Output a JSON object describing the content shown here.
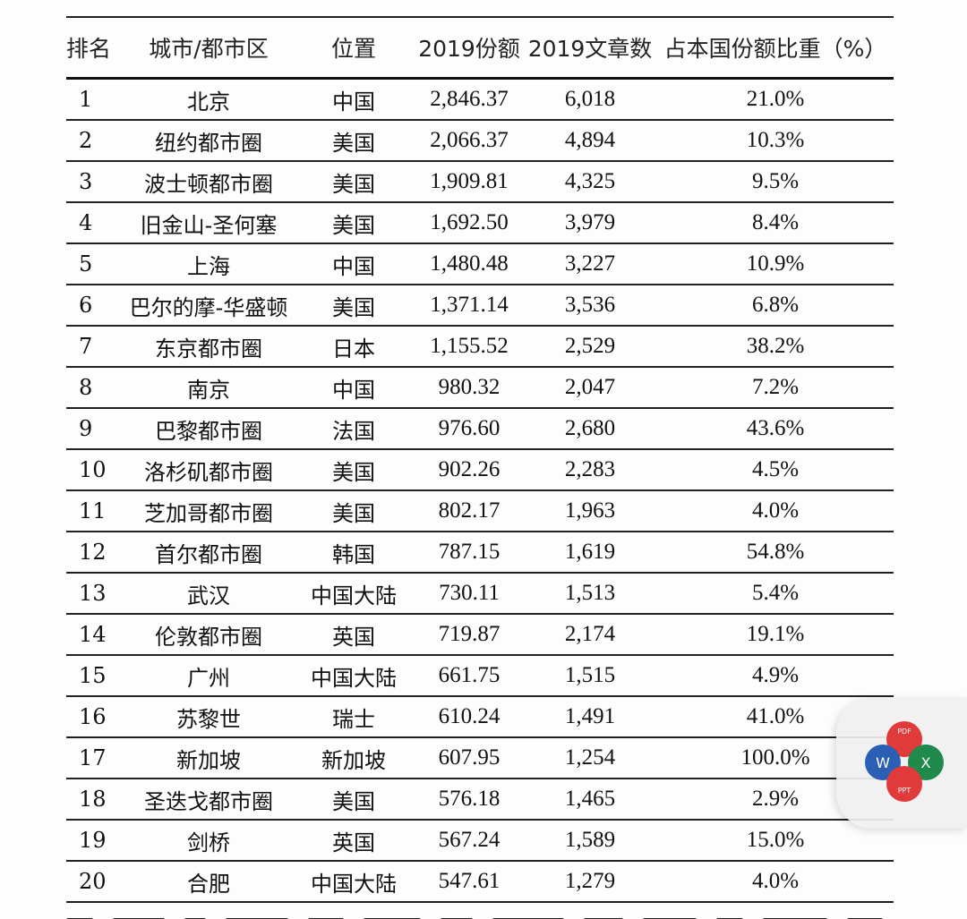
{
  "table": {
    "headers": {
      "rank": "排名",
      "city": "城市/都市区",
      "location": "位置",
      "share_2019": "2019份额",
      "articles_2019": "2019文章数",
      "ratio": "占本国份额比重（%）"
    },
    "rows": [
      {
        "rank": "1",
        "city": "北京",
        "location": "中国",
        "share": "2,846.37",
        "articles": "6,018",
        "ratio": "21.0%"
      },
      {
        "rank": "2",
        "city": "纽约都市圈",
        "location": "美国",
        "share": "2,066.37",
        "articles": "4,894",
        "ratio": "10.3%"
      },
      {
        "rank": "3",
        "city": "波士顿都市圈",
        "location": "美国",
        "share": "1,909.81",
        "articles": "4,325",
        "ratio": "9.5%"
      },
      {
        "rank": "4",
        "city": "旧金山-圣何塞",
        "location": "美国",
        "share": "1,692.50",
        "articles": "3,979",
        "ratio": "8.4%"
      },
      {
        "rank": "5",
        "city": "上海",
        "location": "中国",
        "share": "1,480.48",
        "articles": "3,227",
        "ratio": "10.9%"
      },
      {
        "rank": "6",
        "city": "巴尔的摩-华盛顿",
        "location": "美国",
        "share": "1,371.14",
        "articles": "3,536",
        "ratio": "6.8%"
      },
      {
        "rank": "7",
        "city": "东京都市圈",
        "location": "日本",
        "share": "1,155.52",
        "articles": "2,529",
        "ratio": "38.2%"
      },
      {
        "rank": "8",
        "city": "南京",
        "location": "中国",
        "share": "980.32",
        "articles": "2,047",
        "ratio": "7.2%"
      },
      {
        "rank": "9",
        "city": "巴黎都市圈",
        "location": "法国",
        "share": "976.60",
        "articles": "2,680",
        "ratio": "43.6%"
      },
      {
        "rank": "10",
        "city": "洛杉矶都市圈",
        "location": "美国",
        "share": "902.26",
        "articles": "2,283",
        "ratio": "4.5%"
      },
      {
        "rank": "11",
        "city": "芝加哥都市圈",
        "location": "美国",
        "share": "802.17",
        "articles": "1,963",
        "ratio": "4.0%"
      },
      {
        "rank": "12",
        "city": "首尔都市圈",
        "location": "韩国",
        "share": "787.15",
        "articles": "1,619",
        "ratio": "54.8%"
      },
      {
        "rank": "13",
        "city": "武汉",
        "location": "中国大陆",
        "share": "730.11",
        "articles": "1,513",
        "ratio": "5.4%"
      },
      {
        "rank": "14",
        "city": "伦敦都市圈",
        "location": "英国",
        "share": "719.87",
        "articles": "2,174",
        "ratio": "19.1%"
      },
      {
        "rank": "15",
        "city": "广州",
        "location": "中国大陆",
        "share": "661.75",
        "articles": "1,515",
        "ratio": "4.9%"
      },
      {
        "rank": "16",
        "city": "苏黎世",
        "location": "瑞士",
        "share": "610.24",
        "articles": "1,491",
        "ratio": "41.0%"
      },
      {
        "rank": "17",
        "city": "新加坡",
        "location": "新加坡",
        "share": "607.95",
        "articles": "1,254",
        "ratio": "100.0%"
      },
      {
        "rank": "18",
        "city": "圣迭戈都市圈",
        "location": "美国",
        "share": "576.18",
        "articles": "1,465",
        "ratio": "2.9%"
      },
      {
        "rank": "19",
        "city": "剑桥",
        "location": "英国",
        "share": "567.24",
        "articles": "1,589",
        "ratio": "15.0%"
      },
      {
        "rank": "20",
        "city": "合肥",
        "location": "中国大陆",
        "share": "547.61",
        "articles": "1,279",
        "ratio": "4.0%"
      }
    ]
  },
  "widget": {
    "icon": "office-suite-icon",
    "letters": {
      "top": "PDF",
      "left": "W",
      "right": "X",
      "bottom": "PPT"
    },
    "colors": {
      "top": "#e03a3a",
      "left": "#2b5fb4",
      "right": "#1f8a4c",
      "bottom": "#e03a3a"
    }
  }
}
